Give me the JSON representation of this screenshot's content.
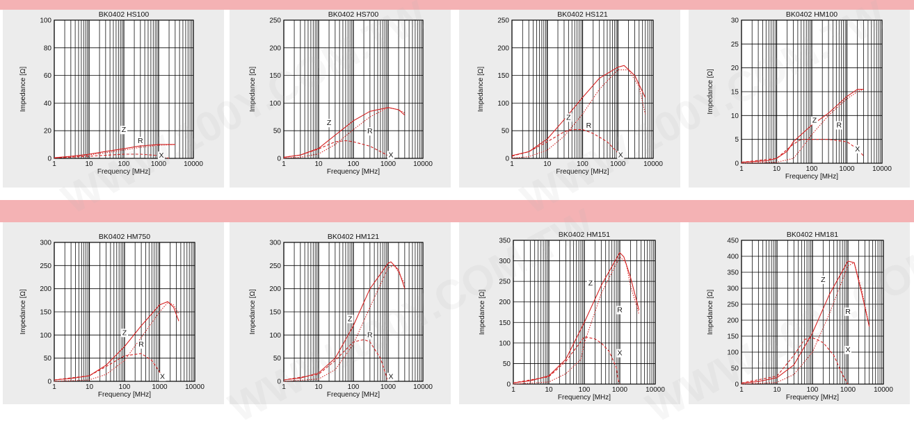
{
  "colors": {
    "band": "#f4b2b4",
    "panel": "#ececec",
    "curve": "#d42020",
    "grid": "#000000"
  },
  "watermark": "WWW.100Y.COM.TW",
  "chart_data": [
    {
      "type": "line",
      "title": "BK0402 HS100",
      "xlabel": "Frequency [MHz]",
      "ylabel": "Impedance [Ω]",
      "x_scale": "log",
      "xlim": [
        1,
        10000
      ],
      "ylim": [
        0,
        100
      ],
      "xticks": [
        "1",
        "10",
        "100",
        "1000",
        "10000"
      ],
      "yticks": [
        "0",
        "20",
        "40",
        "60",
        "80",
        "100"
      ],
      "annotations": [
        "Z",
        "R",
        "X"
      ],
      "series": [
        {
          "name": "Z",
          "style": "solid",
          "x": [
            1,
            3,
            10,
            30,
            100,
            300,
            1000,
            3000
          ],
          "y": [
            0.5,
            1.5,
            3,
            5,
            7,
            9,
            10,
            10
          ]
        },
        {
          "name": "R",
          "style": "dotted",
          "x": [
            1,
            3,
            10,
            30,
            100,
            300,
            1000,
            3000
          ],
          "y": [
            0.2,
            1,
            2.5,
            4,
            6,
            8,
            9.5,
            10
          ]
        },
        {
          "name": "X",
          "style": "dashed",
          "x": [
            1,
            10,
            100,
            300,
            1000,
            2000
          ],
          "y": [
            0.3,
            1.5,
            3,
            3,
            2,
            0
          ]
        }
      ]
    },
    {
      "type": "line",
      "title": "BK0402 HS700",
      "xlabel": "Frequency [MHz]",
      "ylabel": "Impedance [Ω]",
      "x_scale": "log",
      "xlim": [
        1,
        10000
      ],
      "ylim": [
        0,
        250
      ],
      "xticks": [
        "1",
        "10",
        "100",
        "1000",
        "10000"
      ],
      "yticks": [
        "0",
        "50",
        "100",
        "150",
        "200",
        "250"
      ],
      "annotations": [
        "Z",
        "R",
        "X"
      ],
      "series": [
        {
          "name": "Z",
          "style": "solid",
          "x": [
            1,
            3,
            10,
            30,
            100,
            300,
            1000,
            2000,
            3000
          ],
          "y": [
            2,
            6,
            18,
            42,
            68,
            85,
            92,
            88,
            78
          ]
        },
        {
          "name": "R",
          "style": "dotted",
          "x": [
            1,
            3,
            10,
            30,
            100,
            300,
            1000,
            2000,
            3000
          ],
          "y": [
            0.5,
            2,
            8,
            25,
            52,
            75,
            92,
            88,
            82
          ]
        },
        {
          "name": "X",
          "style": "dashed",
          "x": [
            1,
            3,
            10,
            30,
            60,
            100,
            300,
            1000,
            1500
          ],
          "y": [
            2,
            6,
            17,
            30,
            32,
            30,
            22,
            5,
            0
          ]
        }
      ]
    },
    {
      "type": "line",
      "title": "BK0402 HS121",
      "xlabel": "Frequency [MHz]",
      "ylabel": "Impedance [Ω]",
      "x_scale": "log",
      "xlim": [
        1,
        10000
      ],
      "ylim": [
        0,
        250
      ],
      "xticks": [
        "1",
        "10",
        "100",
        "1000",
        "10000"
      ],
      "yticks": [
        "0",
        "50",
        "100",
        "150",
        "200",
        "250"
      ],
      "annotations": [
        "Z",
        "R",
        "X"
      ],
      "series": [
        {
          "name": "Z",
          "style": "solid",
          "x": [
            1,
            3,
            10,
            30,
            100,
            300,
            1000,
            1500,
            3000,
            6000
          ],
          "y": [
            5,
            12,
            35,
            70,
            110,
            145,
            165,
            168,
            150,
            110
          ]
        },
        {
          "name": "R",
          "style": "dotted",
          "x": [
            1,
            3,
            10,
            30,
            100,
            300,
            1000,
            2000,
            4000,
            6000
          ],
          "y": [
            0.5,
            3,
            15,
            40,
            80,
            125,
            160,
            160,
            130,
            80
          ]
        },
        {
          "name": "X",
          "style": "dashed",
          "x": [
            1,
            3,
            10,
            30,
            50,
            100,
            200,
            500,
            1000,
            1500
          ],
          "y": [
            4,
            12,
            30,
            48,
            52,
            52,
            45,
            30,
            10,
            0
          ]
        }
      ]
    },
    {
      "type": "line",
      "title": "BK0402 HM100",
      "xlabel": "Frequency [MHz]",
      "ylabel": "Impedance [Ω]",
      "x_scale": "log",
      "xlim": [
        1,
        10000
      ],
      "ylim": [
        0,
        30
      ],
      "xticks": [
        "1",
        "10",
        "100",
        "1000",
        "10000"
      ],
      "yticks": [
        "0",
        "5",
        "10",
        "15",
        "20",
        "25",
        "30"
      ],
      "annotations": [
        "Z",
        "R",
        "X"
      ],
      "series": [
        {
          "name": "Z",
          "style": "solid",
          "x": [
            1,
            5,
            10,
            20,
            30,
            50,
            100,
            300,
            1000,
            2000,
            3000
          ],
          "y": [
            0.2,
            0.5,
            1,
            2.5,
            4.5,
            6,
            8,
            10.5,
            14,
            15.5,
            15.5
          ]
        },
        {
          "name": "R",
          "style": "dotted",
          "x": [
            1,
            10,
            30,
            50,
            100,
            300,
            1000,
            2000,
            3000
          ],
          "y": [
            0,
            0.2,
            1,
            3,
            6,
            10,
            13.5,
            15,
            15.5
          ]
        },
        {
          "name": "X",
          "style": "dashed",
          "x": [
            1,
            10,
            30,
            50,
            100,
            300,
            1000,
            2000,
            3000
          ],
          "y": [
            0.2,
            1,
            4,
            5,
            5,
            5,
            4.5,
            3,
            1.5
          ]
        }
      ]
    },
    {
      "type": "line",
      "title": "BK0402 HM750",
      "xlabel": "Frequency [MHz]",
      "ylabel": "Impedance [Ω]",
      "x_scale": "log",
      "xlim": [
        1,
        10000
      ],
      "ylim": [
        0,
        300
      ],
      "xticks": [
        "1",
        "10",
        "100",
        "1000",
        "10000"
      ],
      "yticks": [
        "0",
        "50",
        "100",
        "150",
        "200",
        "250",
        "300"
      ],
      "annotations": [
        "Z",
        "R",
        "X"
      ],
      "series": [
        {
          "name": "Z",
          "style": "solid",
          "x": [
            1,
            3,
            10,
            30,
            100,
            300,
            1000,
            1700,
            2500,
            3500
          ],
          "y": [
            3,
            6,
            12,
            35,
            75,
            120,
            165,
            172,
            160,
            130
          ]
        },
        {
          "name": "R",
          "style": "dotted",
          "x": [
            1,
            10,
            30,
            100,
            300,
            1000,
            1700,
            2500,
            3500
          ],
          "y": [
            0,
            3,
            15,
            45,
            95,
            150,
            170,
            165,
            145
          ]
        },
        {
          "name": "X",
          "style": "dashed",
          "x": [
            1,
            10,
            30,
            100,
            300,
            600,
            1000,
            1500
          ],
          "y": [
            3,
            12,
            32,
            55,
            60,
            45,
            20,
            0
          ]
        }
      ]
    },
    {
      "type": "line",
      "title": "BK0402 HM121",
      "xlabel": "Frequency [MHz]",
      "ylabel": "Impedance [Ω]",
      "x_scale": "log",
      "xlim": [
        1,
        10000
      ],
      "ylim": [
        0,
        300
      ],
      "xticks": [
        "1",
        "10",
        "100",
        "1000",
        "10000"
      ],
      "yticks": [
        "0",
        "50",
        "100",
        "150",
        "200",
        "250",
        "300"
      ],
      "annotations": [
        "Z",
        "R",
        "X"
      ],
      "series": [
        {
          "name": "Z",
          "style": "solid",
          "x": [
            1,
            3,
            10,
            30,
            100,
            300,
            1000,
            1200,
            2000,
            3000
          ],
          "y": [
            3,
            7,
            18,
            50,
            120,
            200,
            255,
            258,
            240,
            200
          ]
        },
        {
          "name": "R",
          "style": "dotted",
          "x": [
            1,
            10,
            30,
            100,
            300,
            1000,
            1500,
            2000,
            3000
          ],
          "y": [
            0,
            5,
            25,
            80,
            160,
            245,
            250,
            235,
            210
          ]
        },
        {
          "name": "X",
          "style": "dashed",
          "x": [
            1,
            10,
            30,
            100,
            200,
            300,
            600,
            1000
          ],
          "y": [
            3,
            15,
            45,
            85,
            90,
            85,
            50,
            0
          ]
        }
      ]
    },
    {
      "type": "line",
      "title": "BK0402 HM151",
      "xlabel": "Frequency [MHz]",
      "ylabel": "Impedance [Ω]",
      "x_scale": "log",
      "xlim": [
        1,
        10000
      ],
      "ylim": [
        0,
        350
      ],
      "xticks": [
        "1",
        "10",
        "100",
        "1000",
        "10000"
      ],
      "yticks": [
        "0",
        "50",
        "100",
        "150",
        "200",
        "250",
        "300",
        "350"
      ],
      "annotations": [
        "Z",
        "R",
        "X"
      ],
      "series": [
        {
          "name": "Z",
          "style": "solid",
          "x": [
            1,
            3,
            10,
            30,
            100,
            300,
            1000,
            1300,
            2000,
            3500
          ],
          "y": [
            3,
            8,
            20,
            60,
            150,
            240,
            320,
            310,
            260,
            180
          ]
        },
        {
          "name": "R",
          "style": "dotted",
          "x": [
            1,
            10,
            30,
            80,
            100,
            300,
            1000,
            1500,
            2000,
            3500
          ],
          "y": [
            0,
            5,
            25,
            60,
            100,
            220,
            310,
            295,
            240,
            170
          ]
        },
        {
          "name": "X",
          "style": "dashed",
          "x": [
            1,
            10,
            30,
            100,
            200,
            300,
            500,
            800,
            900,
            1000
          ],
          "y": [
            3,
            18,
            55,
            115,
            110,
            100,
            80,
            40,
            10,
            0
          ]
        }
      ]
    },
    {
      "type": "line",
      "title": "BK0402 HM181",
      "xlabel": "Frequency [MHz]",
      "ylabel": "Impedance [Ω]",
      "x_scale": "log",
      "xlim": [
        1,
        10000
      ],
      "ylim": [
        0,
        450
      ],
      "xticks": [
        "1",
        "10",
        "100",
        "1000",
        "10000"
      ],
      "yticks": [
        "0",
        "50",
        "100",
        "150",
        "200",
        "250",
        "300",
        "350",
        "400",
        "450"
      ],
      "annotations": [
        "Z",
        "R",
        "X"
      ],
      "series": [
        {
          "name": "Z",
          "style": "solid",
          "x": [
            1,
            3,
            10,
            30,
            100,
            300,
            1000,
            1500,
            2500,
            4000
          ],
          "y": [
            3,
            8,
            20,
            60,
            160,
            280,
            385,
            380,
            280,
            180
          ]
        },
        {
          "name": "R",
          "style": "dotted",
          "x": [
            1,
            10,
            30,
            100,
            300,
            1000,
            1500,
            2500,
            4000
          ],
          "y": [
            0,
            5,
            30,
            100,
            220,
            370,
            380,
            290,
            180
          ]
        },
        {
          "name": "X",
          "style": "dashed",
          "x": [
            1,
            10,
            30,
            60,
            100,
            200,
            400,
            700,
            1000
          ],
          "y": [
            3,
            25,
            90,
            140,
            145,
            130,
            90,
            30,
            0
          ]
        }
      ]
    }
  ]
}
